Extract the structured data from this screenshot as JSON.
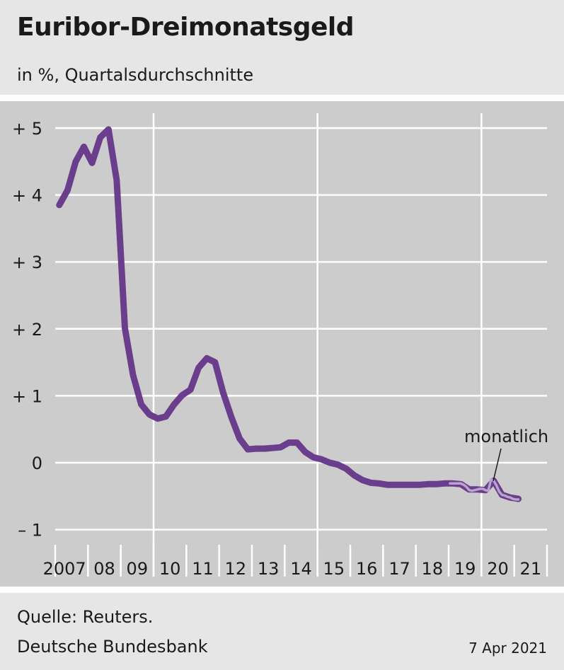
{
  "header": {
    "title": "Euribor-Dreimonatsgeld",
    "subtitle": "in %, Quartalsdurchschnitte"
  },
  "footer": {
    "source": "Quelle: Reuters.",
    "publisher": "Deutsche Bundesbank",
    "date": "7 Apr 2021"
  },
  "colors": {
    "series_quarterly": "#6a3e8c",
    "series_monthly": "#b9a3cf",
    "plot_background": "#cccccc",
    "panel_background": "#e6e6e6",
    "grid": "#ffffff"
  },
  "chart_data": {
    "type": "line",
    "title": "Euribor-Dreimonatsgeld",
    "subtitle": "in %, Quartalsdurchschnitte",
    "ylim": [
      -1,
      5
    ],
    "xlim": [
      2007,
      2022
    ],
    "y_ticks": [
      5,
      4,
      3,
      2,
      1,
      0,
      -1
    ],
    "y_tick_labels": [
      "+ 5",
      "+ 4",
      "+ 3",
      "+ 2",
      "+ 1",
      "0",
      "– 1"
    ],
    "x_tick_labels": [
      "2007",
      "08",
      "09",
      "10",
      "11",
      "12",
      "13",
      "14",
      "15",
      "16",
      "17",
      "18",
      "19",
      "20",
      "21"
    ],
    "grid": true,
    "annotation": "monatlich",
    "series": [
      {
        "key": "quarterly",
        "x": [
          2007.125,
          2007.375,
          2007.625,
          2007.875,
          2008.125,
          2008.375,
          2008.625,
          2008.875,
          2009.125,
          2009.375,
          2009.625,
          2009.875,
          2010.125,
          2010.375,
          2010.625,
          2010.875,
          2011.125,
          2011.375,
          2011.625,
          2011.875,
          2012.125,
          2012.375,
          2012.625,
          2012.875,
          2013.125,
          2013.375,
          2013.625,
          2013.875,
          2014.125,
          2014.375,
          2014.625,
          2014.875,
          2015.125,
          2015.375,
          2015.625,
          2015.875,
          2016.125,
          2016.375,
          2016.625,
          2016.875,
          2017.125,
          2017.375,
          2017.625,
          2017.875,
          2018.125,
          2018.375,
          2018.625,
          2018.875,
          2019.125,
          2019.375,
          2019.625,
          2019.875,
          2020.125,
          2020.375,
          2020.625,
          2020.875,
          2021.125
        ],
        "values": [
          3.85,
          4.07,
          4.5,
          4.72,
          4.48,
          4.86,
          4.98,
          4.22,
          2.01,
          1.31,
          0.87,
          0.72,
          0.66,
          0.69,
          0.87,
          1.01,
          1.09,
          1.42,
          1.56,
          1.5,
          1.04,
          0.68,
          0.36,
          0.2,
          0.21,
          0.21,
          0.22,
          0.23,
          0.3,
          0.3,
          0.16,
          0.08,
          0.05,
          0.0,
          -0.03,
          -0.09,
          -0.19,
          -0.26,
          -0.3,
          -0.31,
          -0.33,
          -0.33,
          -0.33,
          -0.33,
          -0.33,
          -0.32,
          -0.32,
          -0.31,
          -0.31,
          -0.32,
          -0.4,
          -0.4,
          -0.41,
          -0.27,
          -0.48,
          -0.52,
          -0.54
        ]
      },
      {
        "key": "monthly",
        "x": [
          2019.042,
          2019.125,
          2019.208,
          2019.292,
          2019.375,
          2019.458,
          2019.542,
          2019.625,
          2019.708,
          2019.792,
          2019.875,
          2019.958,
          2020.042,
          2020.125,
          2020.208,
          2020.292,
          2020.375,
          2020.458,
          2020.542,
          2020.625,
          2020.708,
          2020.792,
          2020.875,
          2020.958,
          2021.042,
          2021.125
        ],
        "values": [
          -0.31,
          -0.31,
          -0.31,
          -0.31,
          -0.31,
          -0.33,
          -0.36,
          -0.41,
          -0.42,
          -0.41,
          -0.4,
          -0.39,
          -0.39,
          -0.41,
          -0.42,
          -0.25,
          -0.27,
          -0.34,
          -0.43,
          -0.48,
          -0.49,
          -0.51,
          -0.52,
          -0.54,
          -0.55,
          -0.55
        ]
      }
    ]
  }
}
